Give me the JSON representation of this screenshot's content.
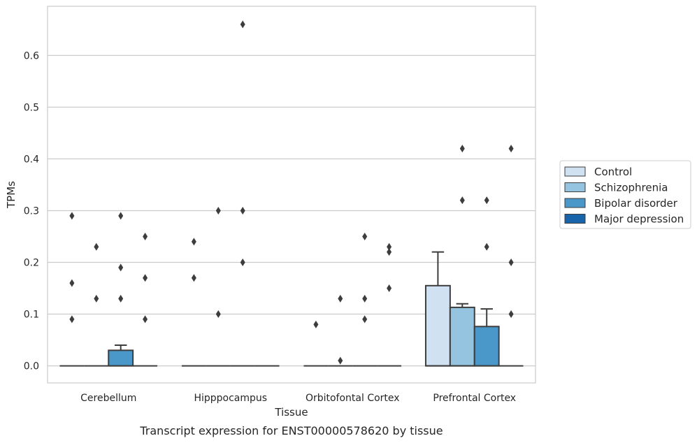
{
  "chart_data": {
    "type": "box",
    "xlabel": "Tissue",
    "ylabel": "TPMs",
    "caption": "Transcript expression for ENST00000578620 by tissue",
    "ylim": [
      -0.033,
      0.695
    ],
    "yticks": [
      0.0,
      0.1,
      0.2,
      0.3,
      0.4,
      0.5,
      0.6
    ],
    "ytick_labels": [
      "0.0",
      "0.1",
      "0.2",
      "0.3",
      "0.4",
      "0.5",
      "0.6"
    ],
    "grid": true,
    "legend_position": "right",
    "categories": [
      "Cerebellum",
      "Hipppocampus",
      "Orbitofontal Cortex",
      "Prefrontal Cortex"
    ],
    "series": [
      {
        "name": "Control",
        "color": "#d0e1f2"
      },
      {
        "name": "Schizophrenia",
        "color": "#94c4df"
      },
      {
        "name": "Bipolar disorder",
        "color": "#4a98c9"
      },
      {
        "name": "Major depression",
        "color": "#1764ab"
      }
    ],
    "boxes": [
      [
        {
          "q1": 0,
          "median": 0,
          "q3": 0,
          "whisker_low": 0,
          "whisker_high": 0,
          "outliers": [
            0.29,
            0.16,
            0.09
          ]
        },
        {
          "q1": 0,
          "median": 0,
          "q3": 0,
          "whisker_low": 0,
          "whisker_high": 0,
          "outliers": [
            0.23,
            0.13
          ]
        },
        {
          "q1": 0,
          "median": 0,
          "q3": 0.03,
          "whisker_low": 0,
          "whisker_high": 0.04,
          "outliers": [
            0.29,
            0.19,
            0.13
          ]
        },
        {
          "q1": 0,
          "median": 0,
          "q3": 0,
          "whisker_low": 0,
          "whisker_high": 0,
          "outliers": [
            0.25,
            0.17,
            0.09
          ]
        }
      ],
      [
        {
          "q1": 0,
          "median": 0,
          "q3": 0,
          "whisker_low": 0,
          "whisker_high": 0,
          "outliers": [
            0.24,
            0.17
          ]
        },
        {
          "q1": 0,
          "median": 0,
          "q3": 0,
          "whisker_low": 0,
          "whisker_high": 0,
          "outliers": [
            0.3,
            0.1
          ]
        },
        {
          "q1": 0,
          "median": 0,
          "q3": 0,
          "whisker_low": 0,
          "whisker_high": 0,
          "outliers": [
            0.66,
            0.3,
            0.2
          ]
        },
        {
          "q1": 0,
          "median": 0,
          "q3": 0,
          "whisker_low": 0,
          "whisker_high": 0,
          "outliers": []
        }
      ],
      [
        {
          "q1": 0,
          "median": 0,
          "q3": 0,
          "whisker_low": 0,
          "whisker_high": 0,
          "outliers": [
            0.08
          ]
        },
        {
          "q1": 0,
          "median": 0,
          "q3": 0,
          "whisker_low": 0,
          "whisker_high": 0,
          "outliers": [
            0.13,
            0.01
          ]
        },
        {
          "q1": 0,
          "median": 0,
          "q3": 0,
          "whisker_low": 0,
          "whisker_high": 0,
          "outliers": [
            0.25,
            0.13,
            0.09
          ]
        },
        {
          "q1": 0,
          "median": 0,
          "q3": 0,
          "whisker_low": 0,
          "whisker_high": 0,
          "outliers": [
            0.23,
            0.22,
            0.15
          ]
        }
      ],
      [
        {
          "q1": 0,
          "median": 0,
          "q3": 0.155,
          "whisker_low": 0,
          "whisker_high": 0.22,
          "outliers": []
        },
        {
          "q1": 0,
          "median": 0,
          "q3": 0.113,
          "whisker_low": 0,
          "whisker_high": 0.12,
          "outliers": [
            0.42,
            0.32
          ]
        },
        {
          "q1": 0,
          "median": 0,
          "q3": 0.076,
          "whisker_low": 0,
          "whisker_high": 0.11,
          "outliers": [
            0.32,
            0.23
          ]
        },
        {
          "q1": 0,
          "median": 0,
          "q3": 0,
          "whisker_low": 0,
          "whisker_high": 0,
          "outliers": [
            0.42,
            0.2,
            0.1
          ]
        }
      ]
    ]
  }
}
